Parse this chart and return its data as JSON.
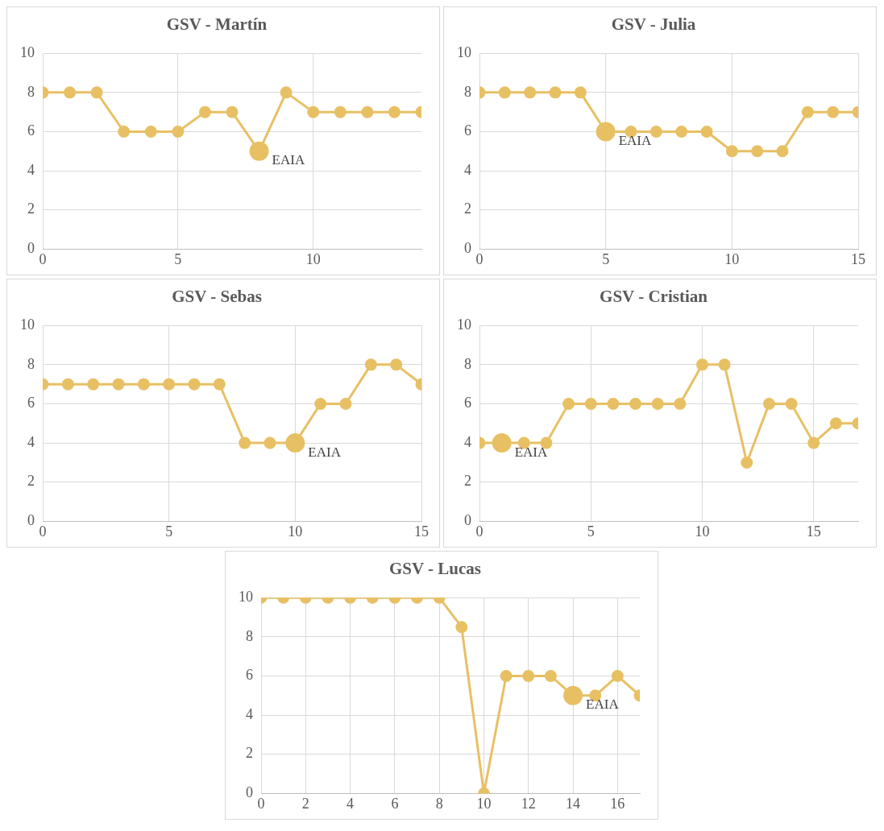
{
  "chart_data": [
    {
      "type": "line",
      "title": "GSV - Martín",
      "xlim": [
        0,
        14
      ],
      "xticks": [
        0,
        5,
        10
      ],
      "ylim": [
        0,
        10
      ],
      "yticks": [
        0,
        2,
        4,
        6,
        8,
        10
      ],
      "grid": true,
      "marker": "circle",
      "series": [
        {
          "color": "#e8c064",
          "x": [
            0,
            1,
            2,
            3,
            4,
            5,
            6,
            7,
            8,
            9,
            10,
            11,
            12,
            13,
            14
          ],
          "values": [
            8,
            8,
            8,
            6,
            6,
            6,
            7,
            7,
            5,
            8,
            7,
            7,
            7,
            7,
            7
          ]
        },
        {
          "type": "scatter",
          "color": "#e8c064",
          "x": [
            8
          ],
          "values": [
            5
          ]
        }
      ],
      "annotations": [
        {
          "text": "EAIA",
          "x": 8,
          "y": 5
        }
      ]
    },
    {
      "type": "line",
      "title": "GSV - Julia",
      "xlim": [
        0,
        15
      ],
      "xticks": [
        0,
        5,
        10,
        15
      ],
      "ylim": [
        0,
        10
      ],
      "yticks": [
        0,
        2,
        4,
        6,
        8,
        10
      ],
      "grid": true,
      "marker": "circle",
      "series": [
        {
          "color": "#e8c064",
          "x": [
            0,
            1,
            2,
            3,
            4,
            5,
            6,
            7,
            8,
            9,
            10,
            11,
            12,
            13,
            14,
            15
          ],
          "values": [
            8,
            8,
            8,
            8,
            8,
            6,
            6,
            6,
            6,
            6,
            5,
            5,
            5,
            7,
            7,
            7
          ]
        },
        {
          "type": "scatter",
          "color": "#e8c064",
          "x": [
            5
          ],
          "values": [
            6
          ]
        }
      ],
      "annotations": [
        {
          "text": "EAIA",
          "x": 5,
          "y": 6
        }
      ]
    },
    {
      "type": "line",
      "title": "GSV - Sebas",
      "xlim": [
        0,
        15
      ],
      "xticks": [
        0,
        5,
        10,
        15
      ],
      "ylim": [
        0,
        10
      ],
      "yticks": [
        0,
        2,
        4,
        6,
        8,
        10
      ],
      "grid": true,
      "marker": "circle",
      "series": [
        {
          "color": "#e8c064",
          "x": [
            0,
            1,
            2,
            3,
            4,
            5,
            6,
            7,
            8,
            9,
            10,
            11,
            12,
            13,
            14,
            15
          ],
          "values": [
            7,
            7,
            7,
            7,
            7,
            7,
            7,
            7,
            4,
            4,
            4,
            6,
            6,
            8,
            8,
            7
          ]
        },
        {
          "type": "scatter",
          "color": "#e8c064",
          "x": [
            10
          ],
          "values": [
            4
          ]
        }
      ],
      "annotations": [
        {
          "text": "EAIA",
          "x": 10,
          "y": 4
        }
      ]
    },
    {
      "type": "line",
      "title": "GSV - Cristian",
      "xlim": [
        0,
        17
      ],
      "xticks": [
        0,
        5,
        10,
        15
      ],
      "ylim": [
        0,
        10
      ],
      "yticks": [
        0,
        2,
        4,
        6,
        8,
        10
      ],
      "grid": true,
      "marker": "circle",
      "series": [
        {
          "color": "#e8c064",
          "x": [
            0,
            1,
            2,
            3,
            4,
            5,
            6,
            7,
            8,
            9,
            10,
            11,
            12,
            13,
            14,
            15,
            16,
            17
          ],
          "values": [
            4,
            4,
            4,
            4,
            6,
            6,
            6,
            6,
            6,
            6,
            8,
            8,
            3,
            6,
            6,
            4,
            5,
            5
          ]
        },
        {
          "type": "scatter",
          "color": "#e8c064",
          "x": [
            1
          ],
          "values": [
            4
          ]
        }
      ],
      "annotations": [
        {
          "text": "EAIA",
          "x": 1,
          "y": 4
        }
      ]
    },
    {
      "type": "line",
      "title": "GSV - Lucas",
      "xlim": [
        0,
        17
      ],
      "xticks": [
        0,
        2,
        4,
        6,
        8,
        10,
        12,
        14,
        16
      ],
      "ylim": [
        0,
        10
      ],
      "yticks": [
        0,
        2,
        4,
        6,
        8,
        10
      ],
      "grid": true,
      "marker": "circle",
      "series": [
        {
          "color": "#e8c064",
          "x": [
            0,
            1,
            2,
            3,
            4,
            5,
            6,
            7,
            8,
            9,
            10,
            11,
            12,
            13,
            14,
            15,
            16,
            17
          ],
          "values": [
            10,
            10,
            10,
            10,
            10,
            10,
            10,
            10,
            10,
            8.5,
            0,
            6,
            6,
            6,
            5,
            5,
            6,
            5
          ]
        },
        {
          "type": "scatter",
          "color": "#e8c064",
          "x": [
            14
          ],
          "values": [
            5
          ]
        }
      ],
      "annotations": [
        {
          "text": "EAIA",
          "x": 14,
          "y": 5
        }
      ]
    }
  ]
}
